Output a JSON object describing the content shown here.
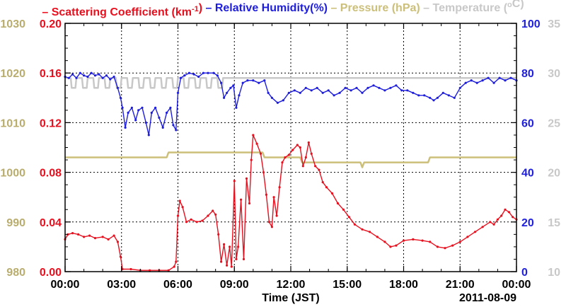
{
  "chart_data": {
    "type": "line",
    "date_label": "2011-08-09",
    "xlabel": "Time (JST)",
    "x_ticks": [
      "00:00",
      "03:00",
      "06:00",
      "09:00",
      "12:00",
      "15:00",
      "18:00",
      "21:00",
      "00:00"
    ],
    "x_range_hours": [
      0,
      24
    ],
    "grid": true,
    "legend": {
      "placement": "top",
      "items": [
        {
          "dash": "–",
          "name": "Scattering Coefficient (km",
          "sup": "-1",
          "close": ")",
          "color": "#e8101e"
        },
        {
          "dash": "–",
          "name": "Relative Humidity(%)",
          "color": "#1e1edc"
        },
        {
          "dash": "–",
          "name": "Pressure (hPa)",
          "color": "#cbbf7a"
        },
        {
          "dash": "–",
          "name": "Temperature (",
          "sup": "o",
          "close": "C)",
          "color": "#c8c8c8"
        }
      ]
    },
    "axes": {
      "pressure": {
        "side": "left-outer",
        "color": "#b9ad6e",
        "range": [
          980,
          1030
        ],
        "ticks": [
          "980",
          "990",
          "1000",
          "1010",
          "1020",
          "1030"
        ]
      },
      "scattering": {
        "side": "left-inner",
        "color": "#e8101e",
        "range": [
          0,
          0.2
        ],
        "ticks": [
          "0.00",
          "0.04",
          "0.08",
          "0.12",
          "0.16",
          "0.20"
        ]
      },
      "humidity": {
        "side": "right-inner",
        "color": "#1e1edc",
        "range": [
          0,
          100
        ],
        "ticks": [
          "0",
          "20",
          "40",
          "60",
          "80",
          "100"
        ]
      },
      "temperature": {
        "side": "right-outer",
        "color": "#c8c8c8",
        "range": [
          10,
          35
        ],
        "ticks": [
          "10",
          "15",
          "20",
          "25",
          "30",
          "35"
        ]
      }
    },
    "series": [
      {
        "name": "Scattering Coefficient",
        "axis": "scattering",
        "color": "#e8101e",
        "points": [
          [
            0,
            0.026
          ],
          [
            0.15,
            0.03
          ],
          [
            0.4,
            0.031
          ],
          [
            0.7,
            0.03
          ],
          [
            1.0,
            0.028
          ],
          [
            1.3,
            0.029
          ],
          [
            1.6,
            0.027
          ],
          [
            2.0,
            0.028
          ],
          [
            2.3,
            0.026
          ],
          [
            2.6,
            0.029
          ],
          [
            2.8,
            0.024
          ],
          [
            2.95,
            0.012
          ],
          [
            3.05,
            0.002
          ],
          [
            3.5,
            0.002
          ],
          [
            4.0,
            0.001
          ],
          [
            4.5,
            0.001
          ],
          [
            5.0,
            0.001
          ],
          [
            5.5,
            0.001
          ],
          [
            5.8,
            0.004
          ],
          [
            5.9,
            0.008
          ],
          [
            6.0,
            0.045
          ],
          [
            6.1,
            0.057
          ],
          [
            6.25,
            0.052
          ],
          [
            6.45,
            0.04
          ],
          [
            6.7,
            0.042
          ],
          [
            7.0,
            0.04
          ],
          [
            7.3,
            0.041
          ],
          [
            7.6,
            0.045
          ],
          [
            7.85,
            0.049
          ],
          [
            8.0,
            0.046
          ],
          [
            8.15,
            0.03
          ],
          [
            8.3,
            0.008
          ],
          [
            8.45,
            0.022
          ],
          [
            8.6,
            0.005
          ],
          [
            8.75,
            0.02
          ],
          [
            8.85,
            0.004
          ],
          [
            9.0,
            0.073
          ],
          [
            9.1,
            0.01
          ],
          [
            9.2,
            0.02
          ],
          [
            9.35,
            0.058
          ],
          [
            9.5,
            0.01
          ],
          [
            9.65,
            0.075
          ],
          [
            9.8,
            0.055
          ],
          [
            9.9,
            0.09
          ],
          [
            10.0,
            0.11
          ],
          [
            10.2,
            0.103
          ],
          [
            10.4,
            0.095
          ],
          [
            10.55,
            0.08
          ],
          [
            10.7,
            0.062
          ],
          [
            10.85,
            0.04
          ],
          [
            11.0,
            0.036
          ],
          [
            11.1,
            0.06
          ],
          [
            11.25,
            0.045
          ],
          [
            11.4,
            0.068
          ],
          [
            11.55,
            0.088
          ],
          [
            11.7,
            0.092
          ],
          [
            11.9,
            0.094
          ],
          [
            12.1,
            0.098
          ],
          [
            12.35,
            0.102
          ],
          [
            12.5,
            0.1
          ],
          [
            12.65,
            0.085
          ],
          [
            12.8,
            0.092
          ],
          [
            12.95,
            0.104
          ],
          [
            13.1,
            0.095
          ],
          [
            13.3,
            0.085
          ],
          [
            13.5,
            0.082
          ],
          [
            13.7,
            0.072
          ],
          [
            13.9,
            0.068
          ],
          [
            14.2,
            0.063
          ],
          [
            14.5,
            0.055
          ],
          [
            14.8,
            0.05
          ],
          [
            15.1,
            0.044
          ],
          [
            15.4,
            0.038
          ],
          [
            15.8,
            0.034
          ],
          [
            16.2,
            0.032
          ],
          [
            16.6,
            0.028
          ],
          [
            17.0,
            0.024
          ],
          [
            17.3,
            0.02
          ],
          [
            17.6,
            0.021
          ],
          [
            18.0,
            0.025
          ],
          [
            18.5,
            0.026
          ],
          [
            19.0,
            0.025
          ],
          [
            19.4,
            0.024
          ],
          [
            19.8,
            0.02
          ],
          [
            20.2,
            0.019
          ],
          [
            20.6,
            0.021
          ],
          [
            21.0,
            0.024
          ],
          [
            21.4,
            0.028
          ],
          [
            21.8,
            0.032
          ],
          [
            22.2,
            0.036
          ],
          [
            22.6,
            0.04
          ],
          [
            22.8,
            0.038
          ],
          [
            23.0,
            0.042
          ],
          [
            23.2,
            0.045
          ],
          [
            23.4,
            0.05
          ],
          [
            23.6,
            0.048
          ],
          [
            23.8,
            0.044
          ],
          [
            24.0,
            0.042
          ]
        ]
      },
      {
        "name": "Relative Humidity",
        "axis": "humidity",
        "color": "#1e1edc",
        "points": [
          [
            0,
            78.5
          ],
          [
            0.2,
            78
          ],
          [
            0.4,
            79.5
          ],
          [
            0.6,
            78
          ],
          [
            0.8,
            80
          ],
          [
            1.0,
            79
          ],
          [
            1.2,
            78.5
          ],
          [
            1.4,
            80
          ],
          [
            1.6,
            79
          ],
          [
            1.8,
            79.5
          ],
          [
            2.0,
            78
          ],
          [
            2.2,
            79
          ],
          [
            2.4,
            77.5
          ],
          [
            2.6,
            78.5
          ],
          [
            2.8,
            74
          ],
          [
            2.95,
            70
          ],
          [
            3.05,
            66
          ],
          [
            3.2,
            58
          ],
          [
            3.35,
            64
          ],
          [
            3.55,
            66
          ],
          [
            3.75,
            61
          ],
          [
            3.9,
            65
          ],
          [
            4.1,
            66
          ],
          [
            4.3,
            60
          ],
          [
            4.45,
            55
          ],
          [
            4.6,
            64
          ],
          [
            4.8,
            66
          ],
          [
            5.0,
            62
          ],
          [
            5.2,
            58
          ],
          [
            5.4,
            64
          ],
          [
            5.6,
            66
          ],
          [
            5.75,
            59
          ],
          [
            5.9,
            57
          ],
          [
            6.0,
            72
          ],
          [
            6.15,
            78
          ],
          [
            6.35,
            79
          ],
          [
            6.6,
            80
          ],
          [
            6.85,
            79.5
          ],
          [
            7.1,
            78.5
          ],
          [
            7.35,
            80
          ],
          [
            7.6,
            80
          ],
          [
            7.9,
            80
          ],
          [
            8.1,
            79
          ],
          [
            8.3,
            76
          ],
          [
            8.45,
            70
          ],
          [
            8.6,
            72
          ],
          [
            8.8,
            74
          ],
          [
            8.95,
            75
          ],
          [
            9.1,
            66
          ],
          [
            9.25,
            71
          ],
          [
            9.45,
            76
          ],
          [
            9.7,
            77
          ],
          [
            10.0,
            77
          ],
          [
            10.3,
            76
          ],
          [
            10.6,
            77
          ],
          [
            10.8,
            72
          ],
          [
            11.0,
            70
          ],
          [
            11.3,
            68
          ],
          [
            11.6,
            69
          ],
          [
            11.9,
            72
          ],
          [
            12.2,
            73
          ],
          [
            12.5,
            72
          ],
          [
            12.8,
            74
          ],
          [
            13.1,
            73
          ],
          [
            13.4,
            74
          ],
          [
            13.7,
            72
          ],
          [
            14.0,
            73
          ],
          [
            14.3,
            71
          ],
          [
            14.6,
            72
          ],
          [
            14.9,
            74
          ],
          [
            15.2,
            73
          ],
          [
            15.5,
            74
          ],
          [
            15.8,
            72
          ],
          [
            16.1,
            74
          ],
          [
            16.4,
            75
          ],
          [
            16.7,
            74
          ],
          [
            17.0,
            73
          ],
          [
            17.3,
            74
          ],
          [
            17.6,
            75
          ],
          [
            17.9,
            73
          ],
          [
            18.2,
            73
          ],
          [
            18.5,
            72
          ],
          [
            18.8,
            71
          ],
          [
            19.1,
            71
          ],
          [
            19.4,
            70
          ],
          [
            19.6,
            69
          ],
          [
            19.8,
            70
          ],
          [
            20.1,
            72
          ],
          [
            20.4,
            71
          ],
          [
            20.7,
            70
          ],
          [
            21.0,
            74
          ],
          [
            21.3,
            76
          ],
          [
            21.6,
            77
          ],
          [
            21.9,
            76
          ],
          [
            22.2,
            77
          ],
          [
            22.5,
            78
          ],
          [
            22.8,
            76
          ],
          [
            23.1,
            78
          ],
          [
            23.4,
            77
          ],
          [
            23.7,
            78
          ],
          [
            24.0,
            77
          ]
        ]
      },
      {
        "name": "Pressure",
        "axis": "pressure",
        "color": "#cbbf7a",
        "points": [
          [
            0,
            1003
          ],
          [
            5.4,
            1003
          ],
          [
            5.5,
            1004
          ],
          [
            10.5,
            1004
          ],
          [
            10.6,
            1003
          ],
          [
            12.5,
            1003
          ],
          [
            12.6,
            1002
          ],
          [
            15.7,
            1002
          ],
          [
            15.8,
            1001
          ],
          [
            15.9,
            1002
          ],
          [
            19.3,
            1002
          ],
          [
            19.4,
            1003
          ],
          [
            24.0,
            1003
          ]
        ]
      },
      {
        "name": "Temperature",
        "axis": "temperature",
        "color": "#c8c8c8",
        "points": [
          [
            0,
            29.5
          ],
          [
            0.3,
            29.5
          ],
          [
            0.35,
            28.5
          ],
          [
            0.55,
            28.5
          ],
          [
            0.6,
            29.5
          ],
          [
            0.9,
            29.5
          ],
          [
            0.95,
            28.5
          ],
          [
            1.15,
            28.5
          ],
          [
            1.2,
            29.5
          ],
          [
            1.5,
            29.5
          ],
          [
            1.55,
            28.5
          ],
          [
            1.75,
            28.5
          ],
          [
            1.8,
            29.5
          ],
          [
            2.1,
            29.5
          ],
          [
            2.15,
            28.5
          ],
          [
            2.35,
            28.5
          ],
          [
            2.4,
            29.5
          ],
          [
            2.7,
            29.5
          ],
          [
            2.75,
            28.5
          ],
          [
            2.95,
            28.5
          ],
          [
            3.0,
            29.5
          ],
          [
            3.3,
            29.5
          ],
          [
            3.35,
            28.5
          ],
          [
            3.55,
            28.5
          ],
          [
            3.6,
            29.5
          ],
          [
            3.9,
            29.5
          ],
          [
            3.95,
            28.5
          ],
          [
            4.15,
            28.5
          ],
          [
            4.2,
            29.5
          ],
          [
            4.5,
            29.5
          ],
          [
            4.55,
            28.5
          ],
          [
            4.75,
            28.5
          ],
          [
            4.8,
            29.5
          ],
          [
            5.1,
            29.5
          ],
          [
            5.15,
            28.5
          ],
          [
            5.35,
            28.5
          ],
          [
            5.4,
            29.5
          ],
          [
            5.7,
            29.5
          ],
          [
            5.75,
            28.5
          ],
          [
            5.95,
            28.5
          ],
          [
            6.0,
            29.5
          ],
          [
            6.3,
            29.5
          ],
          [
            6.35,
            28.5
          ],
          [
            6.55,
            28.5
          ],
          [
            6.6,
            29.5
          ],
          [
            6.9,
            29.5
          ],
          [
            6.95,
            28.5
          ],
          [
            7.15,
            28.5
          ],
          [
            7.2,
            29.5
          ],
          [
            7.5,
            29.5
          ],
          [
            7.55,
            28.5
          ],
          [
            7.75,
            28.5
          ],
          [
            7.8,
            29.5
          ],
          [
            8.1,
            29.5
          ],
          [
            8.15,
            28.5
          ],
          [
            8.35,
            28.5
          ],
          [
            8.4,
            29.5
          ],
          [
            24.0,
            29.5
          ]
        ]
      }
    ]
  }
}
